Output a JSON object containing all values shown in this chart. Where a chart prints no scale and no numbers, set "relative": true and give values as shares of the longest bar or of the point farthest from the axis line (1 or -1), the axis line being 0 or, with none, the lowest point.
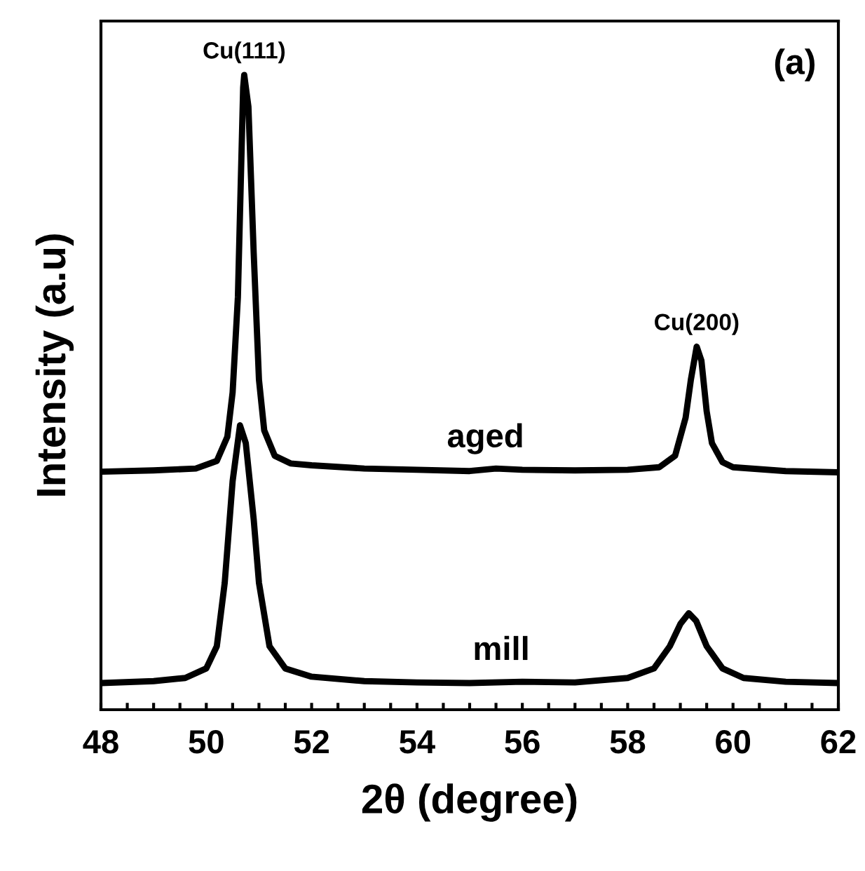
{
  "chart_data": {
    "type": "line",
    "relative": true,
    "xlabel": "2θ (degree)",
    "ylabel": "Intensity (a.u)",
    "xlim": [
      48,
      62
    ],
    "xticks": [
      48,
      {
        "value": 48.5,
        "label": null
      },
      {
        "value": 49,
        "label": null
      },
      {
        "value": 49.5,
        "label": null
      },
      50,
      {
        "value": 50.5,
        "label": null
      },
      {
        "value": 51,
        "label": null
      },
      {
        "value": 51.5,
        "label": null
      },
      52,
      {
        "value": 52.5,
        "label": null
      },
      {
        "value": 53,
        "label": null
      },
      {
        "value": 53.5,
        "label": null
      },
      54,
      {
        "value": 54.5,
        "label": null
      },
      {
        "value": 55,
        "label": null
      },
      {
        "value": 55.5,
        "label": null
      },
      56,
      {
        "value": 56.5,
        "label": null
      },
      {
        "value": 57,
        "label": null
      },
      {
        "value": 57.5,
        "label": null
      },
      58,
      {
        "value": 58.5,
        "label": null
      },
      {
        "value": 59,
        "label": null
      },
      {
        "value": 59.5,
        "label": null
      },
      60,
      {
        "value": 60.5,
        "label": null
      },
      {
        "value": 61,
        "label": null
      },
      {
        "value": 61.5,
        "label": null
      },
      62
    ],
    "tick_labels": "x",
    "grid": false,
    "legend": false,
    "marker": "none",
    "line_style": "solid",
    "series": [
      {
        "name": "aged",
        "color": "#000000",
        "x": [
          48.0,
          49.0,
          49.8,
          50.2,
          50.4,
          50.5,
          50.6,
          50.7,
          50.72,
          50.8,
          50.9,
          51.0,
          51.1,
          51.3,
          51.6,
          52.0,
          53.0,
          54.0,
          55.0,
          55.5,
          56.0,
          57.0,
          58.0,
          58.6,
          58.9,
          59.1,
          59.2,
          59.31,
          59.4,
          59.5,
          59.6,
          59.8,
          60.0,
          61.0,
          62.0
        ],
        "values": [
          0.375,
          0.377,
          0.38,
          0.392,
          0.43,
          0.5,
          0.65,
          0.98,
          1.0,
          0.95,
          0.72,
          0.52,
          0.44,
          0.4,
          0.388,
          0.385,
          0.38,
          0.378,
          0.376,
          0.38,
          0.378,
          0.377,
          0.378,
          0.382,
          0.4,
          0.46,
          0.52,
          0.572,
          0.55,
          0.47,
          0.42,
          0.39,
          0.382,
          0.376,
          0.374
        ]
      },
      {
        "name": "mill",
        "color": "#000000",
        "x": [
          48.0,
          49.0,
          49.6,
          50.0,
          50.2,
          50.35,
          50.5,
          50.64,
          50.75,
          50.9,
          51.0,
          51.2,
          51.5,
          52.0,
          53.0,
          54.0,
          55.0,
          56.0,
          57.0,
          58.0,
          58.5,
          58.8,
          59.0,
          59.16,
          59.3,
          59.5,
          59.8,
          60.2,
          61.0,
          62.0
        ],
        "values": [
          0.042,
          0.045,
          0.05,
          0.065,
          0.1,
          0.2,
          0.36,
          0.448,
          0.42,
          0.3,
          0.2,
          0.1,
          0.065,
          0.052,
          0.045,
          0.043,
          0.042,
          0.044,
          0.043,
          0.05,
          0.065,
          0.1,
          0.135,
          0.152,
          0.14,
          0.1,
          0.065,
          0.05,
          0.044,
          0.042
        ]
      }
    ],
    "annotations": [
      {
        "text": "Cu(111)",
        "x": 50.72,
        "y": 1.0
      },
      {
        "text": "Cu(200)",
        "x": 59.31,
        "y": 0.572
      },
      "(a)"
    ]
  }
}
